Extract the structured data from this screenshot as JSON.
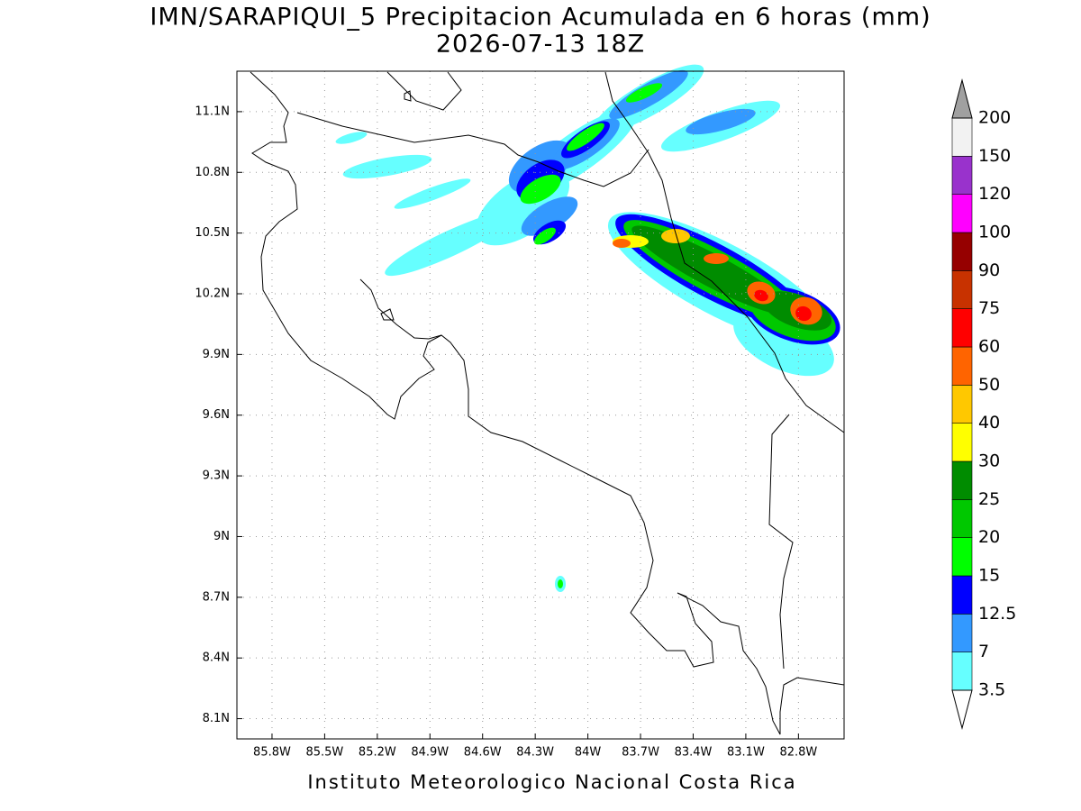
{
  "header": {
    "title": "IMN/SARAPIQUI_5 Precipitacion Acumulada en 6 horas (mm)",
    "subtitle": "2026-07-13 18Z"
  },
  "map": {
    "xlim": [
      -86.0,
      -82.54
    ],
    "ylim": [
      8.0,
      11.3
    ],
    "grid": true,
    "xticks": [
      {
        "value": -85.8,
        "label": "85.8W"
      },
      {
        "value": -85.5,
        "label": "85.5W"
      },
      {
        "value": -85.2,
        "label": "85.2W"
      },
      {
        "value": -84.9,
        "label": "84.9W"
      },
      {
        "value": -84.6,
        "label": "84.6W"
      },
      {
        "value": -84.3,
        "label": "84.3W"
      },
      {
        "value": -84,
        "label": "84W"
      },
      {
        "value": -83.7,
        "label": "83.7W"
      },
      {
        "value": -83.4,
        "label": "83.4W"
      },
      {
        "value": -83.1,
        "label": "83.1W"
      },
      {
        "value": -82.8,
        "label": "82.8W"
      }
    ],
    "yticks": [
      {
        "value": 8.1,
        "label": "8.1N"
      },
      {
        "value": 8.4,
        "label": "8.4N"
      },
      {
        "value": 8.7,
        "label": "8.7N"
      },
      {
        "value": 9,
        "label": "9N"
      },
      {
        "value": 9.3,
        "label": "9.3N"
      },
      {
        "value": 9.6,
        "label": "9.6N"
      },
      {
        "value": 9.9,
        "label": "9.9N"
      },
      {
        "value": 10.2,
        "label": "10.2N"
      },
      {
        "value": 10.5,
        "label": "10.5N"
      },
      {
        "value": 10.8,
        "label": "10.8N"
      },
      {
        "value": 11.1,
        "label": "11.1N"
      }
    ]
  },
  "colorbar": {
    "levels": [
      3.5,
      7,
      12.5,
      15,
      20,
      25,
      30,
      40,
      50,
      60,
      75,
      90,
      100,
      120,
      150,
      200
    ],
    "colors": [
      "#66ffff",
      "#3399ff",
      "#0000ff",
      "#00ff00",
      "#00c800",
      "#008c00",
      "#ffff00",
      "#ffc800",
      "#ff6400",
      "#ff0000",
      "#c83200",
      "#960000",
      "#ff00ff",
      "#9932cc",
      "#f2f2f2"
    ],
    "over_color": "#a0a0a0",
    "under_color": "#ffffff"
  },
  "footer": "Instituto Meteorologico Nacional Costa Rica"
}
